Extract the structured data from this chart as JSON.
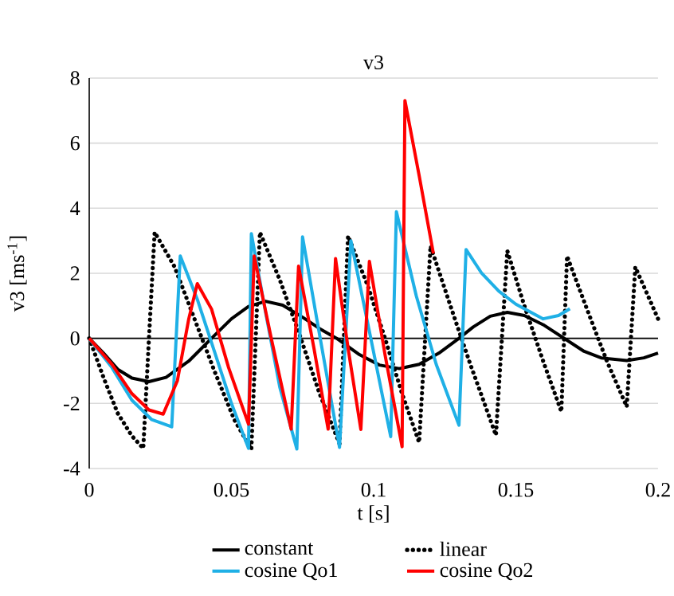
{
  "chart_data": {
    "type": "line",
    "title": "v3",
    "xlabel": "t [s]",
    "ylabel": "v3 [ms$^{-1}$]",
    "xlim": [
      0,
      0.2
    ],
    "xticks": [
      0,
      0.05,
      0.1,
      0.15,
      0.2
    ],
    "ylim": [
      -4,
      8
    ],
    "yticks": [
      -4,
      -2,
      0,
      2,
      4,
      6,
      8
    ],
    "grid": "y",
    "legend": "bottom",
    "marker": "none",
    "series": [
      {
        "name": "constant",
        "color": "#000000",
        "line_style": "solid",
        "x": [
          0,
          0.005,
          0.01,
          0.015,
          0.021,
          0.027,
          0.035,
          0.043,
          0.05,
          0.056,
          0.062,
          0.068,
          0.075,
          0.081,
          0.087,
          0.095,
          0.102,
          0.109,
          0.116,
          0.123,
          0.13,
          0.135,
          0.141,
          0.147,
          0.153,
          0.16,
          0.167,
          0.174,
          0.18,
          0.189,
          0.195,
          0.2
        ],
        "values": [
          0,
          -0.45,
          -0.95,
          -1.22,
          -1.33,
          -1.2,
          -0.7,
          0,
          0.6,
          0.98,
          1.14,
          1.02,
          0.65,
          0.3,
          0,
          -0.5,
          -0.82,
          -0.93,
          -0.8,
          -0.45,
          0,
          0.35,
          0.68,
          0.8,
          0.7,
          0.4,
          0,
          -0.4,
          -0.6,
          -0.68,
          -0.6,
          -0.45
        ]
      },
      {
        "name": "linear",
        "color": "#000000",
        "line_style": "dotted",
        "x": [
          0,
          0.005,
          0.01,
          0.015,
          0.019,
          0.021,
          0.023,
          0.03,
          0.037,
          0.044,
          0.051,
          0.057,
          0.06,
          0.067,
          0.074,
          0.081,
          0.088,
          0.091,
          0.098,
          0.104,
          0.11,
          0.116,
          0.12,
          0.127,
          0.134,
          0.143,
          0.147,
          0.153,
          0.16,
          0.166,
          0.168,
          0.175,
          0.182,
          0.189,
          0.192,
          0.196,
          0.2
        ],
        "values": [
          0,
          -1.2,
          -2.3,
          -3.0,
          -3.38,
          0,
          3.26,
          2.2,
          0.6,
          -1.0,
          -2.5,
          -3.41,
          3.26,
          1.8,
          0.1,
          -1.7,
          -3.24,
          3.15,
          1.6,
          0,
          -1.7,
          -3.2,
          2.84,
          1.0,
          -0.8,
          -2.98,
          2.69,
          1.0,
          -0.8,
          -2.25,
          2.53,
          0.9,
          -0.7,
          -2.1,
          2.19,
          1.4,
          0.6
        ]
      },
      {
        "name": "cosine Qo1",
        "color": "#1fb0e6",
        "line_style": "solid",
        "x": [
          0,
          0.008,
          0.015,
          0.022,
          0.029,
          0.032,
          0.038,
          0.044,
          0.05,
          0.056,
          0.057,
          0.062,
          0.067,
          0.073,
          0.075,
          0.08,
          0.088,
          0.092,
          0.099,
          0.106,
          0.108,
          0.115,
          0.122,
          0.13,
          0.1325,
          0.138,
          0.144,
          0.15,
          0.1596,
          0.165,
          0.169
        ],
        "values": [
          0,
          -0.9,
          -1.9,
          -2.5,
          -2.72,
          2.53,
          1.2,
          -0.4,
          -2.0,
          -3.38,
          3.22,
          0.8,
          -1.5,
          -3.4,
          3.12,
          0.6,
          -3.35,
          3.0,
          0,
          -3.02,
          3.89,
          1.3,
          -0.8,
          -2.67,
          2.73,
          2.0,
          1.45,
          1.05,
          0.6,
          0.7,
          0.91
        ]
      },
      {
        "name": "cosine Qo2",
        "color": "#ff0000",
        "line_style": "solid",
        "x": [
          0,
          0.008,
          0.015,
          0.021,
          0.026,
          0.031,
          0.035,
          0.038,
          0.043,
          0.049,
          0.056,
          0.058,
          0.064,
          0.071,
          0.0736,
          0.079,
          0.084,
          0.0866,
          0.091,
          0.0955,
          0.0985,
          0.104,
          0.11,
          0.111,
          0.116,
          0.121
        ],
        "values": [
          0,
          -0.8,
          -1.7,
          -2.2,
          -2.33,
          -1.3,
          0.6,
          1.68,
          0.9,
          -0.9,
          -2.64,
          2.53,
          0,
          -2.79,
          2.22,
          -0.3,
          -2.79,
          2.45,
          -0.3,
          -2.8,
          2.37,
          -0.5,
          -3.33,
          7.31,
          5.0,
          2.61
        ]
      }
    ]
  }
}
